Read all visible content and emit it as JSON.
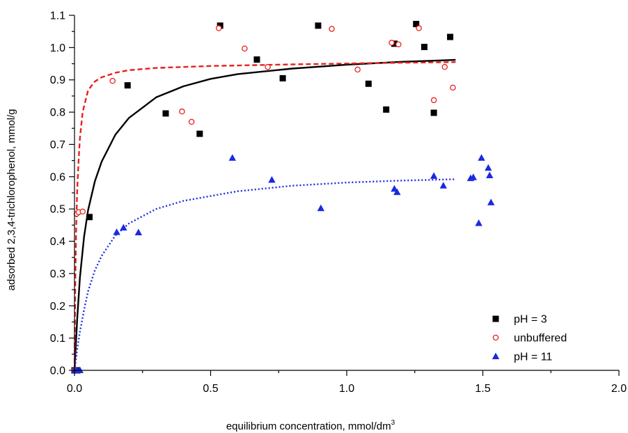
{
  "chart_data": {
    "type": "scatter",
    "title": "",
    "xlabel": "equilibrium concentration, mmol/dm",
    "xlabel_superscript": "3",
    "ylabel": "adsorbed 2,3,4-trichlorophenol, mmol/g",
    "xlim": [
      0.0,
      2.0
    ],
    "ylim": [
      0.0,
      1.1
    ],
    "x_ticks": [
      "0.0",
      "0.5",
      "1.0",
      "1.5",
      "2.0"
    ],
    "x_tick_values": [
      0.0,
      0.5,
      1.0,
      1.5,
      2.0
    ],
    "y_ticks": [
      "0.0",
      "0.1",
      "0.2",
      "0.3",
      "0.4",
      "0.5",
      "0.6",
      "0.7",
      "0.8",
      "0.9",
      "1.0",
      "1.1"
    ],
    "y_tick_values": [
      0.0,
      0.1,
      0.2,
      0.3,
      0.4,
      0.5,
      0.6,
      0.7,
      0.8,
      0.9,
      1.0,
      1.1
    ],
    "grid": false,
    "legend_position": "bottom-right",
    "series": [
      {
        "name": "pH = 3",
        "marker": "filled-square",
        "color": "#000000",
        "x": [
          0.0,
          0.01,
          0.055,
          0.195,
          0.335,
          0.46,
          0.535,
          0.67,
          0.765,
          0.895,
          1.08,
          1.145,
          1.175,
          1.255,
          1.285,
          1.32,
          1.38
        ],
        "y": [
          0.0,
          0.0,
          0.475,
          0.883,
          0.796,
          0.733,
          1.068,
          0.963,
          0.905,
          1.068,
          0.888,
          0.808,
          1.012,
          1.073,
          1.002,
          0.798,
          1.033
        ]
      },
      {
        "name": "unbuffered",
        "marker": "open-circle",
        "color": "#e8201e",
        "x": [
          0.0,
          0.008,
          0.015,
          0.03,
          0.14,
          0.395,
          0.43,
          0.53,
          0.625,
          0.71,
          0.945,
          1.04,
          1.165,
          1.19,
          1.265,
          1.32,
          1.36,
          1.39
        ],
        "y": [
          0.0,
          0.485,
          0.49,
          0.492,
          0.897,
          0.802,
          0.77,
          1.06,
          0.997,
          0.94,
          1.058,
          0.932,
          1.015,
          1.01,
          1.06,
          0.837,
          0.94,
          0.876
        ]
      },
      {
        "name": "pH = 11",
        "marker": "filled-triangle",
        "color": "#1a2ae0",
        "x": [
          0.0,
          0.01,
          0.02,
          0.155,
          0.18,
          0.235,
          0.58,
          0.725,
          0.905,
          1.175,
          1.185,
          1.32,
          1.355,
          1.455,
          1.465,
          1.485,
          1.495,
          1.52,
          1.525,
          1.53
        ],
        "y": [
          0.0,
          0.0,
          0.0,
          0.428,
          0.442,
          0.427,
          0.658,
          0.59,
          0.502,
          0.562,
          0.552,
          0.602,
          0.572,
          0.595,
          0.598,
          0.456,
          0.658,
          0.627,
          0.604,
          0.52
        ]
      }
    ],
    "fit_curves": [
      {
        "series": "pH = 3",
        "style": "solid",
        "color": "#000000",
        "x": [
          0.0,
          0.01,
          0.02,
          0.035,
          0.05,
          0.075,
          0.1,
          0.15,
          0.2,
          0.3,
          0.4,
          0.5,
          0.6,
          0.8,
          1.0,
          1.2,
          1.4
        ],
        "y": [
          0.0,
          0.16,
          0.288,
          0.413,
          0.496,
          0.586,
          0.647,
          0.73,
          0.782,
          0.846,
          0.88,
          0.903,
          0.918,
          0.935,
          0.947,
          0.956,
          0.962
        ]
      },
      {
        "series": "unbuffered",
        "style": "dashed",
        "color": "#e8201e",
        "x": [
          0.0,
          0.003,
          0.006,
          0.01,
          0.015,
          0.02,
          0.03,
          0.05,
          0.075,
          0.1,
          0.15,
          0.2,
          0.3,
          0.5,
          0.8,
          1.1,
          1.4
        ],
        "y": [
          0.0,
          0.28,
          0.43,
          0.56,
          0.65,
          0.72,
          0.8,
          0.868,
          0.895,
          0.908,
          0.922,
          0.93,
          0.937,
          0.943,
          0.948,
          0.952,
          0.955
        ]
      },
      {
        "series": "pH = 11",
        "style": "dotted",
        "color": "#1a2ae0",
        "x": [
          0.0,
          0.01,
          0.02,
          0.035,
          0.05,
          0.075,
          0.1,
          0.15,
          0.2,
          0.3,
          0.4,
          0.6,
          0.8,
          1.0,
          1.2,
          1.4
        ],
        "y": [
          0.0,
          0.065,
          0.12,
          0.187,
          0.245,
          0.31,
          0.355,
          0.418,
          0.455,
          0.5,
          0.525,
          0.555,
          0.572,
          0.582,
          0.588,
          0.592
        ]
      }
    ]
  }
}
